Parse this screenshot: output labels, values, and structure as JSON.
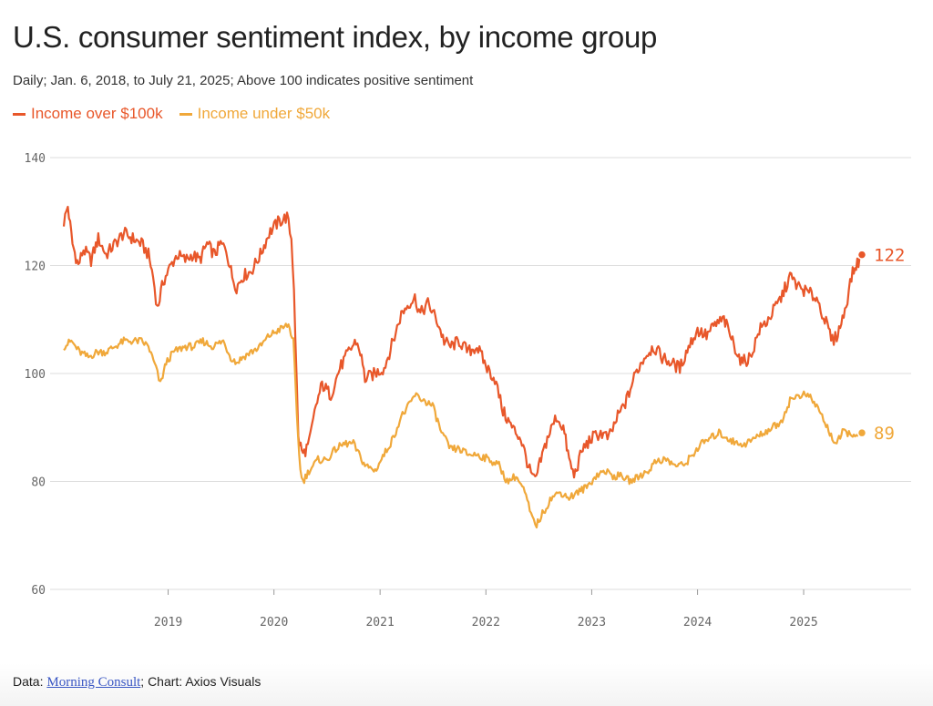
{
  "header": {
    "title": "U.S. consumer sentiment index, by income group",
    "subtitle": "Daily; Jan. 6, 2018, to July 21, 2025; Above 100 indicates positive sentiment"
  },
  "footer": {
    "prefix": "Data: ",
    "source_link": "Morning Consult",
    "suffix": "; Chart: Axios Visuals"
  },
  "colors": {
    "high_income": "#e8572a",
    "low_income": "#f0a83a",
    "grid": "#dddddd"
  },
  "chart_data": {
    "type": "line",
    "title": "U.S. consumer sentiment index, by income group",
    "subtitle": "Daily; Jan. 6, 2018, to July 21, 2025; Above 100 indicates positive sentiment",
    "ylim": [
      60,
      140
    ],
    "y_ticks": [
      140,
      120,
      100,
      80,
      60
    ],
    "x_range": [
      "2018-01-06",
      "2025-07-21"
    ],
    "x_ticks": [
      "2019",
      "2020",
      "2021",
      "2022",
      "2023",
      "2024",
      "2025"
    ],
    "grid": "horizontal",
    "legend": "top-left",
    "series": [
      {
        "name": "Income over $100k",
        "color": "#e8572a",
        "end_label": "122",
        "points": [
          [
            "2018-01-06",
            128
          ],
          [
            "2018-01-20",
            131
          ],
          [
            "2018-02-05",
            124
          ],
          [
            "2018-02-25",
            120
          ],
          [
            "2018-03-15",
            123
          ],
          [
            "2018-04-10",
            121
          ],
          [
            "2018-05-05",
            125
          ],
          [
            "2018-06-01",
            122
          ],
          [
            "2018-07-01",
            124
          ],
          [
            "2018-08-01",
            126
          ],
          [
            "2018-09-01",
            125
          ],
          [
            "2018-10-01",
            124
          ],
          [
            "2018-10-25",
            122
          ],
          [
            "2018-11-10",
            118
          ],
          [
            "2018-11-25",
            112
          ],
          [
            "2018-12-15",
            117
          ],
          [
            "2019-01-10",
            120
          ],
          [
            "2019-02-01",
            122
          ],
          [
            "2019-03-01",
            121
          ],
          [
            "2019-03-25",
            122
          ],
          [
            "2019-04-20",
            121
          ],
          [
            "2019-05-15",
            124
          ],
          [
            "2019-06-10",
            122
          ],
          [
            "2019-07-01",
            124
          ],
          [
            "2019-07-20",
            123
          ],
          [
            "2019-08-10",
            118
          ],
          [
            "2019-08-25",
            116
          ],
          [
            "2019-09-15",
            118
          ],
          [
            "2019-10-15",
            119
          ],
          [
            "2019-11-15",
            122
          ],
          [
            "2019-12-15",
            126
          ],
          [
            "2020-01-15",
            128
          ],
          [
            "2020-02-15",
            129
          ],
          [
            "2020-03-01",
            125
          ],
          [
            "2020-03-10",
            116
          ],
          [
            "2020-03-25",
            88
          ],
          [
            "2020-04-10",
            85
          ],
          [
            "2020-05-01",
            87
          ],
          [
            "2020-05-25",
            94
          ],
          [
            "2020-06-15",
            98
          ],
          [
            "2020-07-15",
            96
          ],
          [
            "2020-08-15",
            101
          ],
          [
            "2020-09-15",
            104
          ],
          [
            "2020-10-10",
            106
          ],
          [
            "2020-10-25",
            104
          ],
          [
            "2020-11-10",
            99
          ],
          [
            "2020-12-15",
            100
          ],
          [
            "2021-01-15",
            101
          ],
          [
            "2021-02-15",
            106
          ],
          [
            "2021-03-15",
            111
          ],
          [
            "2021-04-10",
            113
          ],
          [
            "2021-05-01",
            114
          ],
          [
            "2021-05-20",
            111
          ],
          [
            "2021-06-15",
            113
          ],
          [
            "2021-07-15",
            110
          ],
          [
            "2021-08-10",
            106
          ],
          [
            "2021-09-01",
            105
          ],
          [
            "2021-10-01",
            106
          ],
          [
            "2021-11-01",
            104
          ],
          [
            "2021-12-01",
            105
          ],
          [
            "2022-01-05",
            101
          ],
          [
            "2022-02-01",
            99
          ],
          [
            "2022-03-01",
            93
          ],
          [
            "2022-04-01",
            90
          ],
          [
            "2022-05-01",
            88
          ],
          [
            "2022-06-01",
            82
          ],
          [
            "2022-06-20",
            80
          ],
          [
            "2022-07-10",
            84
          ],
          [
            "2022-08-01",
            88
          ],
          [
            "2022-09-01",
            92
          ],
          [
            "2022-09-25",
            90
          ],
          [
            "2022-10-15",
            84
          ],
          [
            "2022-11-01",
            81
          ],
          [
            "2022-12-01",
            86
          ],
          [
            "2023-01-01",
            88
          ],
          [
            "2023-02-01",
            89
          ],
          [
            "2023-03-01",
            88
          ],
          [
            "2023-04-01",
            92
          ],
          [
            "2023-05-01",
            95
          ],
          [
            "2023-06-01",
            100
          ],
          [
            "2023-07-01",
            103
          ],
          [
            "2023-08-01",
            105
          ],
          [
            "2023-09-01",
            103
          ],
          [
            "2023-10-01",
            102
          ],
          [
            "2023-11-01",
            101
          ],
          [
            "2023-12-01",
            105
          ],
          [
            "2024-01-01",
            108
          ],
          [
            "2024-02-01",
            107
          ],
          [
            "2024-03-01",
            109
          ],
          [
            "2024-04-01",
            110
          ],
          [
            "2024-05-01",
            106
          ],
          [
            "2024-06-01",
            102
          ],
          [
            "2024-07-01",
            103
          ],
          [
            "2024-08-01",
            108
          ],
          [
            "2024-09-01",
            110
          ],
          [
            "2024-10-15",
            114
          ],
          [
            "2024-11-15",
            118
          ],
          [
            "2024-12-15",
            116
          ],
          [
            "2025-01-15",
            115
          ],
          [
            "2025-02-15",
            114
          ],
          [
            "2025-03-15",
            110
          ],
          [
            "2025-04-10",
            106
          ],
          [
            "2025-04-25",
            107
          ],
          [
            "2025-05-15",
            110
          ],
          [
            "2025-06-01",
            114
          ],
          [
            "2025-06-15",
            118
          ],
          [
            "2025-07-01",
            120
          ],
          [
            "2025-07-21",
            122
          ]
        ]
      },
      {
        "name": "Income under $50k",
        "color": "#f0a83a",
        "end_label": "89",
        "points": [
          [
            "2018-01-06",
            105
          ],
          [
            "2018-02-01",
            106
          ],
          [
            "2018-03-01",
            104
          ],
          [
            "2018-04-01",
            103
          ],
          [
            "2018-05-01",
            104
          ],
          [
            "2018-06-01",
            104
          ],
          [
            "2018-07-01",
            105
          ],
          [
            "2018-08-01",
            106
          ],
          [
            "2018-09-01",
            106
          ],
          [
            "2018-10-01",
            106
          ],
          [
            "2018-10-25",
            105
          ],
          [
            "2018-11-20",
            101
          ],
          [
            "2018-12-05",
            98
          ],
          [
            "2018-12-25",
            102
          ],
          [
            "2019-01-20",
            104
          ],
          [
            "2019-03-01",
            105
          ],
          [
            "2019-04-01",
            105
          ],
          [
            "2019-05-01",
            106
          ],
          [
            "2019-06-01",
            105
          ],
          [
            "2019-07-10",
            106
          ],
          [
            "2019-08-05",
            103
          ],
          [
            "2019-08-25",
            102
          ],
          [
            "2019-09-15",
            103
          ],
          [
            "2019-10-15",
            104
          ],
          [
            "2019-11-15",
            105
          ],
          [
            "2019-12-15",
            107
          ],
          [
            "2020-01-15",
            108
          ],
          [
            "2020-02-20",
            109
          ],
          [
            "2020-03-08",
            106
          ],
          [
            "2020-03-20",
            92
          ],
          [
            "2020-04-01",
            82
          ],
          [
            "2020-04-10",
            80
          ],
          [
            "2020-05-01",
            82
          ],
          [
            "2020-06-01",
            84
          ],
          [
            "2020-07-01",
            84
          ],
          [
            "2020-08-01",
            86
          ],
          [
            "2020-09-01",
            87
          ],
          [
            "2020-10-01",
            87
          ],
          [
            "2020-10-20",
            85
          ],
          [
            "2020-11-10",
            83
          ],
          [
            "2020-12-15",
            82
          ],
          [
            "2021-01-15",
            85
          ],
          [
            "2021-02-15",
            88
          ],
          [
            "2021-03-15",
            92
          ],
          [
            "2021-04-10",
            94
          ],
          [
            "2021-05-01",
            96
          ],
          [
            "2021-06-01",
            95
          ],
          [
            "2021-07-01",
            94
          ],
          [
            "2021-08-01",
            89
          ],
          [
            "2021-09-01",
            86
          ],
          [
            "2021-10-01",
            86
          ],
          [
            "2021-11-01",
            85
          ],
          [
            "2021-12-01",
            85
          ],
          [
            "2022-01-15",
            84
          ],
          [
            "2022-02-15",
            83
          ],
          [
            "2022-03-15",
            80
          ],
          [
            "2022-04-15",
            81
          ],
          [
            "2022-05-15",
            78
          ],
          [
            "2022-06-10",
            73
          ],
          [
            "2022-06-25",
            72
          ],
          [
            "2022-07-15",
            74
          ],
          [
            "2022-08-15",
            77
          ],
          [
            "2022-09-15",
            78
          ],
          [
            "2022-10-15",
            77
          ],
          [
            "2022-11-15",
            78
          ],
          [
            "2022-12-15",
            79
          ],
          [
            "2023-01-15",
            81
          ],
          [
            "2023-02-15",
            82
          ],
          [
            "2023-03-15",
            81
          ],
          [
            "2023-04-15",
            81
          ],
          [
            "2023-05-15",
            80
          ],
          [
            "2023-06-15",
            81
          ],
          [
            "2023-07-15",
            82
          ],
          [
            "2023-08-15",
            84
          ],
          [
            "2023-09-15",
            84
          ],
          [
            "2023-10-15",
            83
          ],
          [
            "2023-11-15",
            83
          ],
          [
            "2023-12-15",
            85
          ],
          [
            "2024-01-15",
            87
          ],
          [
            "2024-02-15",
            88
          ],
          [
            "2024-03-15",
            89
          ],
          [
            "2024-04-15",
            88
          ],
          [
            "2024-05-15",
            87
          ],
          [
            "2024-06-15",
            87
          ],
          [
            "2024-07-15",
            88
          ],
          [
            "2024-08-15",
            89
          ],
          [
            "2024-09-15",
            90
          ],
          [
            "2024-10-15",
            91
          ],
          [
            "2024-11-15",
            95
          ],
          [
            "2024-12-15",
            96
          ],
          [
            "2025-01-15",
            96
          ],
          [
            "2025-02-15",
            94
          ],
          [
            "2025-03-15",
            91
          ],
          [
            "2025-04-10",
            88
          ],
          [
            "2025-04-25",
            87
          ],
          [
            "2025-05-15",
            89
          ],
          [
            "2025-06-15",
            89
          ],
          [
            "2025-07-01",
            88
          ],
          [
            "2025-07-21",
            89
          ]
        ]
      }
    ]
  }
}
